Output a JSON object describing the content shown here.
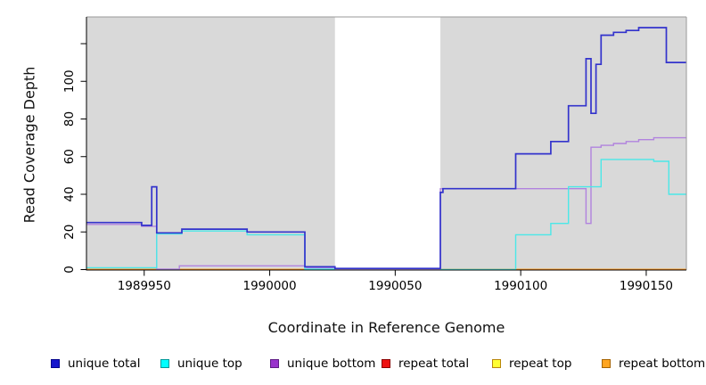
{
  "chart_data": {
    "type": "line",
    "style": "step-after",
    "title": "",
    "xlabel": "Coordinate in Reference Genome",
    "ylabel": "Read Coverage Depth",
    "xlim": [
      1989927,
      1990166
    ],
    "ylim": [
      0,
      135
    ],
    "plot_background": "#D9D9D9",
    "outer_background": "#FFFFFF",
    "grid": false,
    "legend_position": "bottom",
    "masked_region": {
      "x_start": 1990026,
      "x_end": 1990068,
      "color": "#FFFFFF"
    },
    "x_ticks": [
      {
        "value": 1989950,
        "label": "1989950"
      },
      {
        "value": 1990000,
        "label": "1990000"
      },
      {
        "value": 1990050,
        "label": "1990050"
      },
      {
        "value": 1990100,
        "label": "1990100"
      },
      {
        "value": 1990150,
        "label": "1990150"
      }
    ],
    "y_ticks": [
      {
        "value": 0,
        "label": "0"
      },
      {
        "value": 20,
        "label": "20"
      },
      {
        "value": 40,
        "label": "40"
      },
      {
        "value": 60,
        "label": "60"
      },
      {
        "value": 80,
        "label": "80"
      },
      {
        "value": 100,
        "label": "100"
      },
      {
        "value": 120,
        "label": ""
      }
    ],
    "series": [
      {
        "name": "unique total",
        "line_color": "#3333CC",
        "legend_fill": "#1414CC",
        "legend_border": "#00008B",
        "line_width": 1.7,
        "z": 6,
        "segments": [
          [
            [
              1989927,
              25
            ],
            [
              1989949,
              23.5
            ],
            [
              1989953,
              44
            ],
            [
              1989955,
              19.5
            ],
            [
              1989965,
              21.5
            ],
            [
              1989991,
              20
            ],
            [
              1990014,
              1.5
            ],
            [
              1990026,
              0.6
            ],
            [
              1990068,
              41
            ],
            [
              1990069,
              43
            ],
            [
              1990098,
              61.5
            ],
            [
              1990112,
              68
            ],
            [
              1990119,
              87
            ],
            [
              1990126,
              112
            ],
            [
              1990128,
              83
            ],
            [
              1990130,
              109
            ],
            [
              1990132,
              124.5
            ],
            [
              1990137,
              126
            ],
            [
              1990142,
              127
            ],
            [
              1990147,
              128.5
            ],
            [
              1990158,
              110
            ],
            [
              1990166,
              110
            ]
          ]
        ]
      },
      {
        "name": "unique top",
        "line_color": "#4AE8E8",
        "legend_fill": "#00FFFF",
        "legend_border": "#009999",
        "line_width": 1.4,
        "z": 5,
        "segments": [
          [
            [
              1989927,
              1
            ],
            [
              1989955,
              19
            ],
            [
              1989965,
              20.5
            ],
            [
              1989991,
              18.5
            ],
            [
              1990014,
              0.3
            ],
            [
              1990026,
              0.3
            ]
          ],
          [
            [
              1990068,
              0
            ],
            [
              1990098,
              18.5
            ],
            [
              1990112,
              24.5
            ],
            [
              1990119,
              44
            ],
            [
              1990132,
              58.5
            ],
            [
              1990153,
              57.5
            ],
            [
              1990159,
              40
            ],
            [
              1990166,
              40
            ]
          ]
        ]
      },
      {
        "name": "unique bottom",
        "line_color": "#B183DE",
        "legend_fill": "#9933CC",
        "legend_border": "#5E1C85",
        "line_width": 1.4,
        "z": 4,
        "segments": [
          [
            [
              1989927,
              24
            ],
            [
              1989949,
              23
            ],
            [
              1989955,
              0.3
            ],
            [
              1989964,
              2
            ],
            [
              1990014,
              1
            ],
            [
              1990026,
              0.4
            ],
            [
              1990068,
              43
            ],
            [
              1990126,
              24.5
            ],
            [
              1990128,
              65
            ],
            [
              1990132,
              66
            ],
            [
              1990137,
              67
            ],
            [
              1990142,
              68
            ],
            [
              1990147,
              69
            ],
            [
              1990153,
              70
            ],
            [
              1990166,
              70
            ]
          ]
        ]
      },
      {
        "name": "repeat total",
        "line_color": "#DD2222",
        "legend_fill": "#EE1111",
        "legend_border": "#8B0000",
        "line_width": 1.4,
        "z": 1,
        "segments": [
          [
            [
              1989927,
              0
            ],
            [
              1990026,
              0
            ]
          ],
          [
            [
              1990068,
              0
            ],
            [
              1990166,
              0
            ]
          ]
        ]
      },
      {
        "name": "repeat top",
        "line_color": "#F2F200",
        "legend_fill": "#FFFF33",
        "legend_border": "#B8860B",
        "line_width": 1.4,
        "z": 2,
        "segments": [
          [
            [
              1989927,
              0
            ],
            [
              1990026,
              0
            ]
          ],
          [
            [
              1990068,
              0
            ],
            [
              1990166,
              0
            ]
          ]
        ]
      },
      {
        "name": "repeat bottom",
        "line_color": "#FF8C1A",
        "legend_fill": "#FFA520",
        "legend_border": "#A66300",
        "line_width": 1.4,
        "z": 3,
        "segments": [
          [
            [
              1989927,
              0
            ],
            [
              1990026,
              0
            ]
          ],
          [
            [
              1990068,
              0
            ],
            [
              1990166,
              0
            ]
          ]
        ]
      }
    ]
  }
}
